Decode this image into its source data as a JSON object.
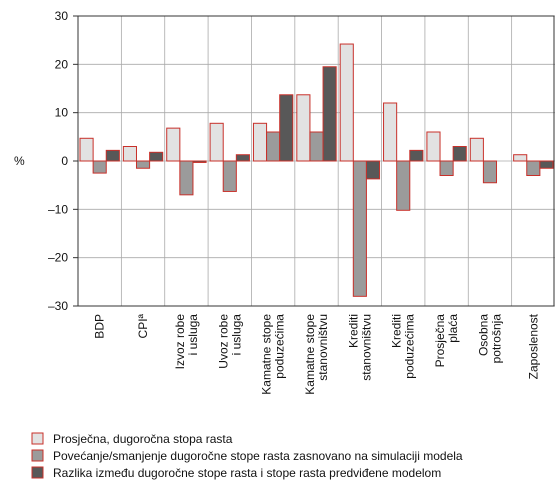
{
  "chart_data": {
    "type": "bar",
    "y_label": "%",
    "categories": [
      "BDP",
      "CPIª",
      "Izvoz robe\ni usluga",
      "Uvoz robe\ni usluga",
      "Kamatne stope\npoduzećima",
      "Kamatne stope\nstanovništvu",
      "Krediti\nstanovništvu",
      "Krediti\npoduzećima",
      "Prosječna\nplaća",
      "Osobna\npotrošnja",
      "Zaposlenost"
    ],
    "series": [
      {
        "name": "Prosječna, dugoročna stopa rasta",
        "color": "#e2e2e2",
        "values": [
          4.7,
          3.0,
          6.8,
          7.8,
          7.8,
          13.7,
          24.2,
          12.0,
          6.0,
          4.7,
          1.3
        ]
      },
      {
        "name": "Povećanje/smanjenje dugoročne stope rasta zasnovano na simulaciji modela",
        "color": "#9b9b9b",
        "values": [
          -2.5,
          -1.5,
          -7.0,
          -6.3,
          6.0,
          6.0,
          -28.0,
          -10.2,
          -3.0,
          -4.5,
          -3.0
        ]
      },
      {
        "name": "Razlika između dugoročne stope rasta i stope rasta predviđene modelom",
        "color": "#585858",
        "values": [
          2.2,
          1.8,
          -0.3,
          1.3,
          13.7,
          19.5,
          -3.7,
          2.2,
          3.0,
          null,
          -1.5
        ]
      }
    ],
    "edge_color": "#c8302a",
    "ylim": [
      -30,
      30
    ],
    "yticks": [
      {
        "value": -30,
        "label": "–30"
      },
      {
        "value": -20,
        "label": "–20"
      },
      {
        "value": -10,
        "label": "–10"
      },
      0,
      10,
      20,
      30
    ],
    "grid": true
  }
}
